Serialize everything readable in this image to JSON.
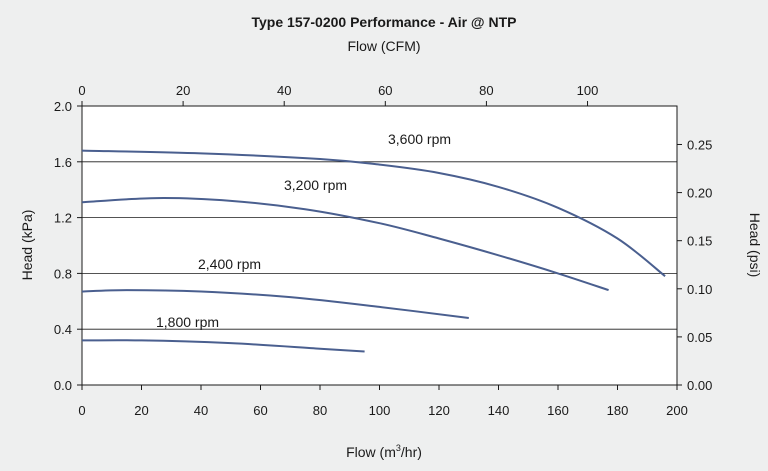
{
  "chart_data": {
    "type": "line",
    "title": "Type 157-0200 Performance - Air @ NTP",
    "xlabel_prefix": "Flow (m",
    "xlabel_sup": "3",
    "xlabel_suffix": "/hr)",
    "xlim": [
      0,
      200
    ],
    "xticks": [
      "0",
      "20",
      "40",
      "60",
      "80",
      "100",
      "120",
      "140",
      "160",
      "180",
      "200"
    ],
    "ylabel": "Head (kPa)",
    "ylim": [
      0,
      2.0
    ],
    "yticks": [
      "0.0",
      "0.4",
      "0.8",
      "1.2",
      "1.6",
      "2.0"
    ],
    "x2label": "Flow (CFM)",
    "x2lim": [
      0,
      117.7
    ],
    "x2ticks": [
      "0",
      "20",
      "40",
      "60",
      "80",
      "100"
    ],
    "y2label": "Head (psi)",
    "y2lim": [
      0,
      0.29
    ],
    "y2ticks": [
      "0.00",
      "0.05",
      "0.10",
      "0.15",
      "0.20",
      "0.25"
    ],
    "grid": "horizontal",
    "series": [
      {
        "name": "3,600 rpm",
        "color": "#4a5f8f",
        "x": [
          0,
          40,
          80,
          100,
          120,
          140,
          160,
          180,
          196
        ],
        "y": [
          1.68,
          1.66,
          1.62,
          1.58,
          1.52,
          1.42,
          1.27,
          1.05,
          0.78
        ]
      },
      {
        "name": "3,200 rpm",
        "color": "#4a5f8f",
        "x": [
          0,
          25,
          50,
          75,
          100,
          120,
          140,
          160,
          177
        ],
        "y": [
          1.31,
          1.34,
          1.32,
          1.26,
          1.16,
          1.05,
          0.93,
          0.8,
          0.68
        ]
      },
      {
        "name": "2,400 rpm",
        "color": "#4a5f8f",
        "x": [
          0,
          15,
          40,
          70,
          100,
          130
        ],
        "y": [
          0.67,
          0.68,
          0.67,
          0.63,
          0.56,
          0.48
        ]
      },
      {
        "name": "1,800 rpm",
        "color": "#4a5f8f",
        "x": [
          0,
          20,
          50,
          80,
          95
        ],
        "y": [
          0.32,
          0.32,
          0.3,
          0.26,
          0.24
        ]
      }
    ]
  }
}
